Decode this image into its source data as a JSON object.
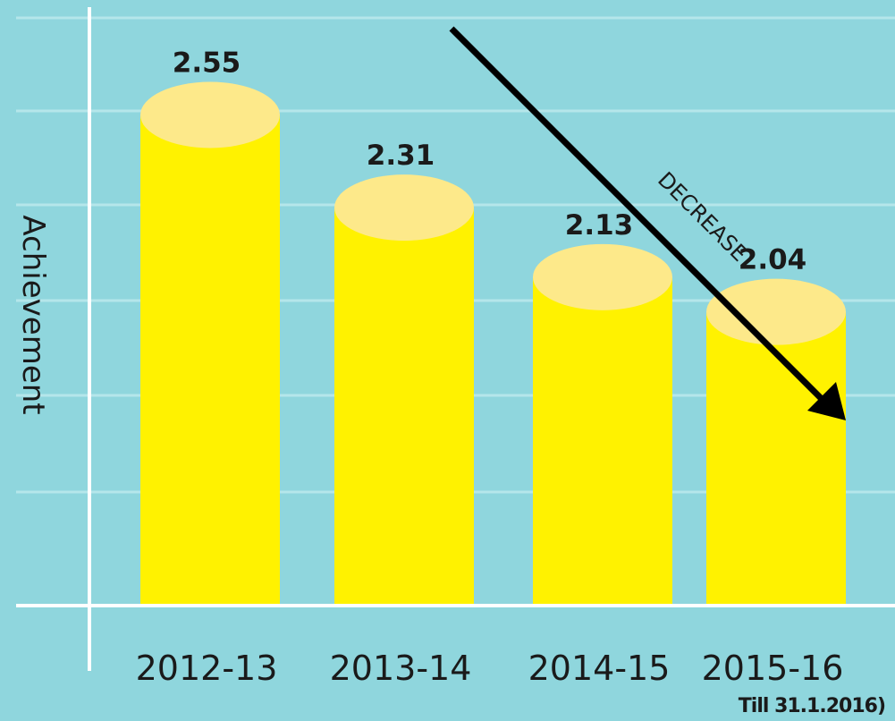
{
  "chart_data": {
    "type": "bar",
    "categories": [
      "2012-13",
      "2013-14",
      "2014-15",
      "2015-16"
    ],
    "category_notes": [
      "",
      "",
      "",
      "Till 31.1.2016)"
    ],
    "values": [
      2.55,
      2.31,
      2.13,
      2.04
    ],
    "data_labels": [
      "2.55",
      "2.31",
      "2.13",
      "2.04"
    ],
    "ylabel": "Achievement",
    "xlabel": "",
    "title": "",
    "grid": true,
    "annotation": "DECREASE",
    "colors": {
      "background": "#8fd6dd",
      "bar": "#fff200",
      "bar_top": "#fde98a",
      "gridline": "#b5e6ea",
      "axis": "#ffffff",
      "arrow": "#000000",
      "text": "#1a1a1a"
    }
  }
}
